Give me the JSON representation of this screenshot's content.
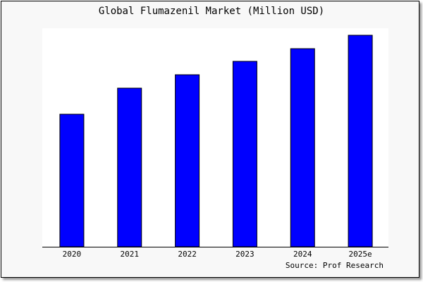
{
  "chart_data": {
    "type": "bar",
    "title": "Global Flumazenil Market (Million USD)",
    "categories": [
      "2020",
      "2021",
      "2022",
      "2023",
      "2024",
      "2025e"
    ],
    "values": [
      188,
      225,
      244,
      263,
      281,
      300
    ],
    "ylim": [
      0,
      300
    ],
    "xlabel": "",
    "ylabel": "",
    "grid": false,
    "bar_color": "#0000ff",
    "source": "Source: Prof Research"
  }
}
